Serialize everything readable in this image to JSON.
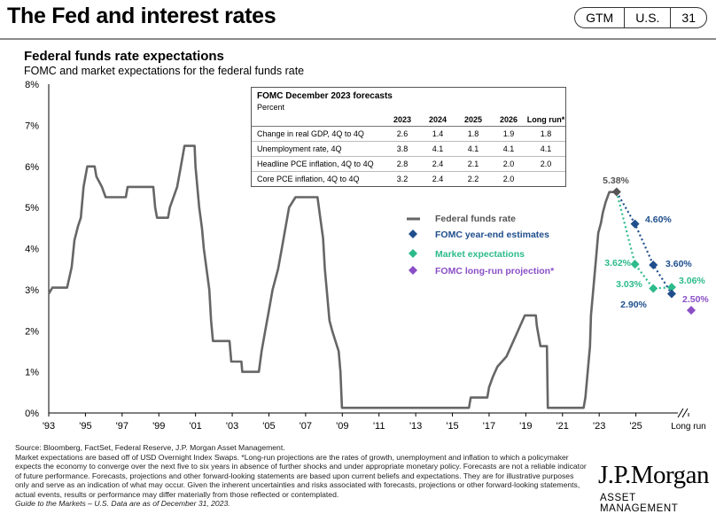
{
  "header": {
    "title": "The Fed and interest rates",
    "badges": [
      "GTM",
      "U.S.",
      "31"
    ]
  },
  "subtitle": "Federal funds rate expectations",
  "subtitle2": "FOMC and market expectations for the federal funds rate",
  "chart_data": {
    "type": "line",
    "ylim": [
      0,
      8
    ],
    "yticks": [
      "0%",
      "1%",
      "2%",
      "3%",
      "4%",
      "5%",
      "6%",
      "7%",
      "8%"
    ],
    "xticks": [
      "'93",
      "'95",
      "'97",
      "'99",
      "'01",
      "'03",
      "'05",
      "'07",
      "'09",
      "'11",
      "'13",
      "'15",
      "'17",
      "'19",
      "'21",
      "'23",
      "'25",
      "Long run"
    ],
    "fed_funds": [
      [
        1993.0,
        2.9
      ],
      [
        1993.2,
        3.05
      ],
      [
        1993.5,
        3.05
      ],
      [
        1994.0,
        3.05
      ],
      [
        1994.1,
        3.25
      ],
      [
        1994.25,
        3.55
      ],
      [
        1994.4,
        4.2
      ],
      [
        1994.6,
        4.55
      ],
      [
        1994.75,
        4.75
      ],
      [
        1994.9,
        5.5
      ],
      [
        1995.1,
        6.0
      ],
      [
        1995.5,
        6.0
      ],
      [
        1995.6,
        5.75
      ],
      [
        1995.9,
        5.5
      ],
      [
        1996.1,
        5.25
      ],
      [
        1997.2,
        5.25
      ],
      [
        1997.3,
        5.5
      ],
      [
        1998.7,
        5.5
      ],
      [
        1998.8,
        5.0
      ],
      [
        1998.9,
        4.75
      ],
      [
        1999.5,
        4.75
      ],
      [
        1999.6,
        5.0
      ],
      [
        1999.8,
        5.25
      ],
      [
        2000.0,
        5.5
      ],
      [
        2000.2,
        6.0
      ],
      [
        2000.4,
        6.5
      ],
      [
        2000.95,
        6.5
      ],
      [
        2001.0,
        6.0
      ],
      [
        2001.2,
        5.0
      ],
      [
        2001.35,
        4.5
      ],
      [
        2001.45,
        4.0
      ],
      [
        2001.6,
        3.5
      ],
      [
        2001.75,
        3.0
      ],
      [
        2001.85,
        2.25
      ],
      [
        2001.95,
        1.75
      ],
      [
        2002.85,
        1.75
      ],
      [
        2002.95,
        1.25
      ],
      [
        2003.5,
        1.25
      ],
      [
        2003.55,
        1.0
      ],
      [
        2004.45,
        1.0
      ],
      [
        2004.6,
        1.5
      ],
      [
        2004.8,
        2.0
      ],
      [
        2005.0,
        2.5
      ],
      [
        2005.2,
        3.0
      ],
      [
        2005.5,
        3.5
      ],
      [
        2005.7,
        4.0
      ],
      [
        2005.9,
        4.5
      ],
      [
        2006.1,
        5.0
      ],
      [
        2006.45,
        5.25
      ],
      [
        2007.65,
        5.25
      ],
      [
        2007.8,
        4.75
      ],
      [
        2007.95,
        4.25
      ],
      [
        2008.05,
        3.5
      ],
      [
        2008.15,
        3.0
      ],
      [
        2008.3,
        2.25
      ],
      [
        2008.45,
        2.0
      ],
      [
        2008.8,
        1.5
      ],
      [
        2008.9,
        1.0
      ],
      [
        2008.98,
        0.125
      ],
      [
        2015.9,
        0.125
      ],
      [
        2016.0,
        0.375
      ],
      [
        2016.9,
        0.375
      ],
      [
        2017.0,
        0.625
      ],
      [
        2017.2,
        0.875
      ],
      [
        2017.45,
        1.125
      ],
      [
        2017.95,
        1.375
      ],
      [
        2018.2,
        1.625
      ],
      [
        2018.45,
        1.875
      ],
      [
        2018.7,
        2.125
      ],
      [
        2018.95,
        2.375
      ],
      [
        2019.55,
        2.375
      ],
      [
        2019.6,
        2.125
      ],
      [
        2019.7,
        1.875
      ],
      [
        2019.8,
        1.625
      ],
      [
        2020.15,
        1.625
      ],
      [
        2020.2,
        0.125
      ],
      [
        2022.15,
        0.125
      ],
      [
        2022.25,
        0.375
      ],
      [
        2022.35,
        0.875
      ],
      [
        2022.5,
        1.625
      ],
      [
        2022.55,
        2.375
      ],
      [
        2022.7,
        3.125
      ],
      [
        2022.85,
        3.875
      ],
      [
        2022.95,
        4.375
      ],
      [
        2023.1,
        4.625
      ],
      [
        2023.2,
        4.875
      ],
      [
        2023.35,
        5.125
      ],
      [
        2023.55,
        5.375
      ],
      [
        2023.95,
        5.375
      ]
    ],
    "fomc_estimates": [
      [
        2023.95,
        5.38
      ],
      [
        2024.95,
        4.6
      ],
      [
        2025.95,
        3.6
      ],
      [
        2026.95,
        2.9
      ]
    ],
    "market_expectations": [
      [
        2023.95,
        5.38
      ],
      [
        2024.95,
        3.62
      ],
      [
        2025.95,
        3.03
      ],
      [
        2026.95,
        3.06
      ]
    ],
    "long_run_projection": 2.5,
    "labels": {
      "current": "5.38%",
      "fomc_2024": "4.60%",
      "fomc_2025": "3.60%",
      "fomc_2026": "2.90%",
      "market_2024": "3.62%",
      "market_2025": "3.03%",
      "market_2026": "3.06%",
      "long_run": "2.50%"
    },
    "legend": [
      "Federal funds rate",
      "FOMC year-end estimates",
      "Market expectations",
      "FOMC long-run projection*"
    ],
    "colors": {
      "fed": "#666666",
      "fomc": "#1f4e8c",
      "market": "#2dbb8c",
      "longrun": "#8a4fc7"
    }
  },
  "table": {
    "title": "FOMC December 2023 forecasts",
    "subtitle": "Percent",
    "columns": [
      "2023",
      "2024",
      "2025",
      "2026",
      "Long run*"
    ],
    "rows": [
      {
        "label": "Change in real GDP, 4Q to 4Q",
        "values": [
          "2.6",
          "1.4",
          "1.8",
          "1.9",
          "1.8"
        ]
      },
      {
        "label": "Unemployment rate, 4Q",
        "values": [
          "3.8",
          "4.1",
          "4.1",
          "4.1",
          "4.1"
        ]
      },
      {
        "label": "Headline PCE inflation, 4Q to 4Q",
        "values": [
          "2.8",
          "2.4",
          "2.1",
          "2.0",
          "2.0"
        ]
      },
      {
        "label": "Core PCE inflation, 4Q to 4Q",
        "values": [
          "3.2",
          "2.4",
          "2.2",
          "2.0",
          ""
        ]
      }
    ]
  },
  "footnote": {
    "source": "Source: Bloomberg, FactSet, Federal Reserve, J.P. Morgan Asset Management.",
    "body": "Market expectations are based off of USD Overnight Index Swaps. *Long-run projections are the rates of growth, unemployment and inflation to which a policymaker expects the economy to converge over the next five to six years in absence of further shocks and under appropriate monetary policy. Forecasts are not a reliable indicator of future performance. Forecasts, projections and other forward-looking statements are based upon current beliefs and expectations. They are for illustrative purposes only and serve as an indication of what may occur. Given the inherent uncertainties and risks associated with forecasts, projections or other forward-looking statements, actual events, results or performance may differ materially from those reflected or contemplated.",
    "gtm": "Guide to the Markets – U.S. Data are as of December 31, 2023."
  },
  "brand": {
    "name": "J.P.Morgan",
    "sub": "ASSET MANAGEMENT"
  }
}
